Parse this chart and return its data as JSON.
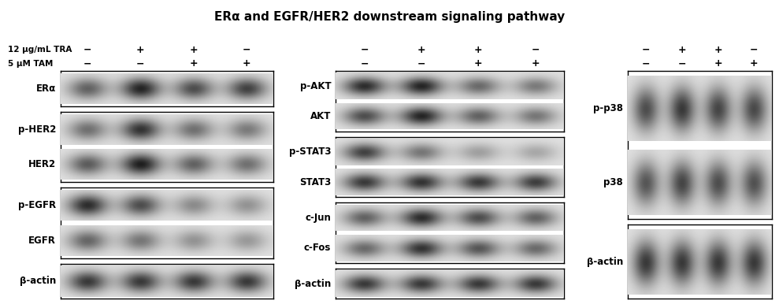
{
  "title": "ERα and EGFR/HER2 downstream signaling pathway",
  "title_fontsize": 11,
  "background_color": "#ffffff",
  "label_row1": "12 μg/mL TRA",
  "label_row2": "5 μM TAM",
  "signs_row1": [
    "−",
    "+",
    "+",
    "−"
  ],
  "signs_row2": [
    "−",
    "−",
    "+",
    "+"
  ],
  "panel1": {
    "groups": [
      {
        "bands": [
          {
            "label": "ERα",
            "intensities": [
              0.62,
              0.92,
              0.72,
              0.78
            ]
          }
        ]
      },
      {
        "bands": [
          {
            "label": "p-HER2",
            "intensities": [
              0.55,
              0.85,
              0.55,
              0.5
            ]
          },
          {
            "label": "HER2",
            "intensities": [
              0.65,
              0.95,
              0.62,
              0.55
            ]
          }
        ]
      },
      {
        "bands": [
          {
            "label": "p-EGFR",
            "intensities": [
              0.88,
              0.72,
              0.42,
              0.38
            ]
          },
          {
            "label": "EGFR",
            "intensities": [
              0.6,
              0.52,
              0.38,
              0.35
            ]
          }
        ]
      },
      {
        "bands": [
          {
            "label": "β-actin",
            "intensities": [
              0.82,
              0.82,
              0.82,
              0.82
            ]
          }
        ]
      }
    ]
  },
  "panel2": {
    "groups": [
      {
        "bands": [
          {
            "label": "p-AKT",
            "intensities": [
              0.88,
              0.92,
              0.58,
              0.5
            ]
          },
          {
            "label": "AKT",
            "intensities": [
              0.72,
              0.92,
              0.62,
              0.52
            ]
          }
        ]
      },
      {
        "bands": [
          {
            "label": "p-STAT3",
            "intensities": [
              0.78,
              0.52,
              0.32,
              0.28
            ]
          },
          {
            "label": "STAT3",
            "intensities": [
              0.82,
              0.85,
              0.82,
              0.8
            ]
          }
        ]
      },
      {
        "bands": [
          {
            "label": "c-Jun",
            "intensities": [
              0.62,
              0.88,
              0.72,
              0.62
            ]
          },
          {
            "label": "c-Fos",
            "intensities": [
              0.58,
              0.85,
              0.68,
              0.58
            ]
          }
        ]
      },
      {
        "bands": [
          {
            "label": "β-actin",
            "intensities": [
              0.82,
              0.82,
              0.82,
              0.82
            ]
          }
        ]
      }
    ]
  },
  "panel3": {
    "groups": [
      {
        "bands": [
          {
            "label": "p-p38",
            "intensities": [
              0.72,
              0.82,
              0.76,
              0.74
            ]
          },
          {
            "label": "p38",
            "intensities": [
              0.68,
              0.76,
              0.72,
              0.7
            ]
          }
        ]
      },
      {
        "bands": [
          {
            "label": "β-actin",
            "intensities": [
              0.82,
              0.82,
              0.82,
              0.82
            ]
          }
        ]
      }
    ]
  }
}
